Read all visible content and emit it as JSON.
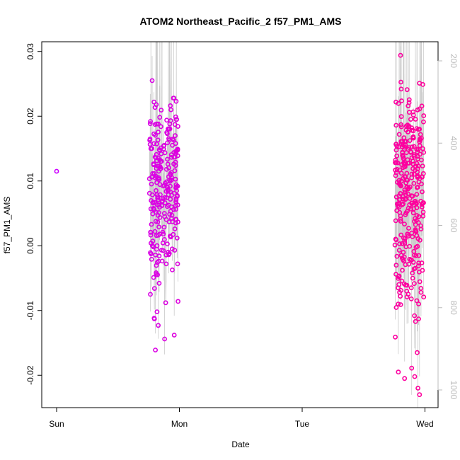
{
  "chart_data": {
    "type": "scatter",
    "title": "ATOM2 Northeast_Pacific_2 f57_PM1_AMS",
    "xlabel": "Date",
    "ylabel": "f57_PM1_AMS",
    "ylim": [
      -0.025,
      0.0315
    ],
    "y_ticks": [
      "-0.02",
      "-0.01",
      "0.00",
      "0.01",
      "0.02",
      "0.03"
    ],
    "x_ticks": [
      "Sun",
      "Mon",
      "Tue",
      "Wed"
    ],
    "secondary_axis": {
      "ticks": [
        "200",
        "400",
        "600",
        "800",
        "1000"
      ],
      "reversed": true,
      "color": "#bbbbbb"
    },
    "colors": {
      "start": "#cc00ff",
      "end": "#ff0099",
      "line": "#cccccc"
    },
    "series": [
      {
        "segment": "Sun",
        "x": [
          0.0
        ],
        "y": [
          0.0115
        ]
      },
      {
        "segment": "Mon",
        "x_range": [
          0.74,
          1.0
        ],
        "n_points": 260,
        "y_sample": [
          0.0255,
          0.0228,
          0.0195,
          0.0192,
          0.0163,
          0.015,
          0.0113,
          0.0084,
          0.0062,
          0.0047,
          0.0029,
          0.0022,
          0.0,
          -0.0005,
          -0.0028,
          -0.0049,
          -0.0058,
          -0.0075,
          -0.0102,
          -0.0112,
          -0.0138,
          -0.0161,
          0.0199,
          0.0218,
          0.0223,
          0.0195,
          0.0188,
          0.0159,
          0.0155,
          0.0137,
          0.0124,
          0.0102,
          0.0092,
          0.0085,
          0.0071,
          0.0057,
          0.0041,
          0.0026,
          0.0018,
          0.0,
          -0.0012,
          -0.0028,
          -0.0044,
          -0.0066,
          -0.0086,
          -0.0123,
          -0.0144,
          0.0188,
          0.0175,
          0.0154,
          0.0122,
          0.0118,
          0.0105,
          0.0092,
          0.0067,
          0.0045,
          0.0004,
          -0.0088,
          -0.0113
        ]
      },
      {
        "segment": "Wed",
        "x_range": [
          2.74,
          3.0
        ],
        "n_points": 320,
        "y_sample": [
          0.0241,
          0.0221,
          0.0216,
          0.0186,
          0.0161,
          0.0145,
          0.0122,
          0.0118,
          0.0093,
          0.0083,
          0.0073,
          0.0048,
          0.0027,
          0.0003,
          -0.0038,
          -0.006,
          -0.0065,
          -0.0082,
          -0.0091,
          -0.0205,
          -0.0195,
          -0.023,
          0.0294,
          0.0251,
          0.0249,
          0.0242,
          0.0181,
          0.0161,
          0.0153,
          0.0123,
          0.0101,
          0.0089,
          0.0076,
          0.0058,
          0.0042,
          0.0023,
          0.0011,
          -0.0007,
          -0.0022,
          -0.0044,
          -0.0059,
          -0.0078,
          -0.0113,
          -0.0141,
          -0.0165,
          -0.0189,
          -0.0202,
          -0.022,
          0.0187,
          0.0163,
          0.0149,
          0.0123,
          0.0104,
          0.0077,
          0.0039,
          0.0007,
          -0.003,
          -0.0072,
          -0.0108,
          -0.0117
        ]
      }
    ]
  }
}
